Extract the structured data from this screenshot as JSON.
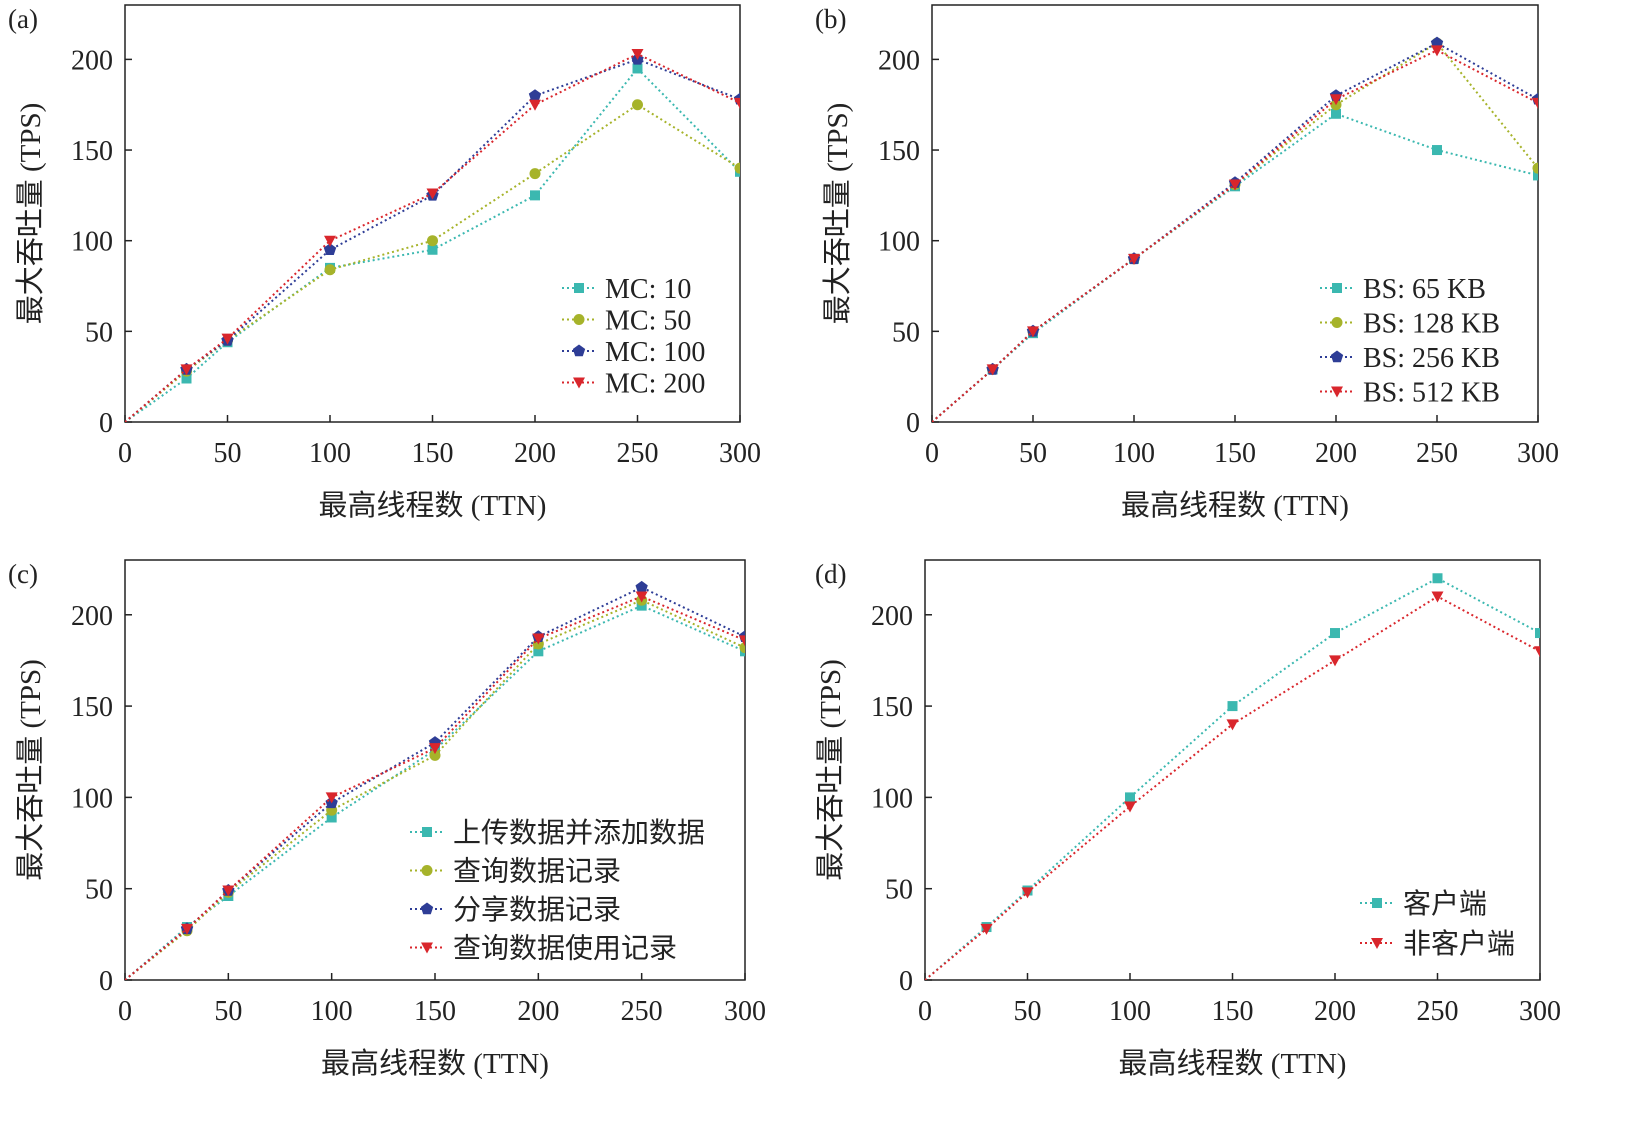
{
  "colors": {
    "teal": "#3bb8b0",
    "olive": "#a6b32a",
    "navy": "#2e3d96",
    "red": "#d9262c"
  },
  "chart_data": [
    {
      "panel": "(a)",
      "type": "line",
      "xlabel": "最高线程数 (TTN)",
      "ylabel": "最大吞吐量 (TPS)",
      "xlim": [
        0,
        300
      ],
      "ylim": [
        0,
        230
      ],
      "xticks": [
        0,
        50,
        100,
        150,
        200,
        250,
        300
      ],
      "yticks": [
        0,
        50,
        100,
        150,
        200
      ],
      "x": [
        0,
        30,
        50,
        100,
        150,
        200,
        250,
        300
      ],
      "legend_position": "right-middle",
      "series": [
        {
          "name": "MC: 10",
          "marker": "square",
          "color": "#3bb8b0",
          "values": [
            0,
            24,
            44,
            85,
            95,
            125,
            195,
            138
          ]
        },
        {
          "name": "MC: 50",
          "marker": "circle",
          "color": "#a6b32a",
          "values": [
            0,
            28,
            45,
            84,
            100,
            137,
            175,
            140
          ]
        },
        {
          "name": "MC: 100",
          "marker": "pentagon",
          "color": "#2e3d96",
          "values": [
            0,
            29,
            45,
            95,
            125,
            180,
            200,
            178
          ]
        },
        {
          "name": "MC: 200",
          "marker": "triangle-down",
          "color": "#d9262c",
          "values": [
            0,
            29,
            46,
            100,
            126,
            175,
            203,
            176
          ]
        }
      ]
    },
    {
      "panel": "(b)",
      "type": "line",
      "xlabel": "最高线程数 (TTN)",
      "ylabel": "最大吞吐量 (TPS)",
      "xlim": [
        0,
        300
      ],
      "ylim": [
        0,
        230
      ],
      "xticks": [
        0,
        50,
        100,
        150,
        200,
        250,
        300
      ],
      "yticks": [
        0,
        50,
        100,
        150,
        200
      ],
      "x": [
        0,
        30,
        50,
        100,
        150,
        200,
        250,
        300
      ],
      "legend_position": "bottom-right",
      "series": [
        {
          "name": "BS: 65 KB",
          "marker": "square",
          "color": "#3bb8b0",
          "values": [
            0,
            29,
            49,
            90,
            130,
            170,
            150,
            136
          ]
        },
        {
          "name": "BS: 128 KB",
          "marker": "circle",
          "color": "#a6b32a",
          "values": [
            0,
            29,
            50,
            90,
            131,
            175,
            209,
            140
          ]
        },
        {
          "name": "BS: 256 KB",
          "marker": "pentagon",
          "color": "#2e3d96",
          "values": [
            0,
            29,
            50,
            90,
            132,
            180,
            209,
            178
          ]
        },
        {
          "name": "BS: 512 KB",
          "marker": "triangle-down",
          "color": "#d9262c",
          "values": [
            0,
            29,
            50,
            90,
            131,
            178,
            205,
            176
          ]
        }
      ]
    },
    {
      "panel": "(c)",
      "type": "line",
      "xlabel": "最高线程数 (TTN)",
      "ylabel": "最大吞吐量 (TPS)",
      "xlim": [
        0,
        300
      ],
      "ylim": [
        0,
        230
      ],
      "xticks": [
        0,
        50,
        100,
        150,
        200,
        250,
        300
      ],
      "yticks": [
        0,
        50,
        100,
        150,
        200
      ],
      "x": [
        0,
        30,
        50,
        100,
        150,
        200,
        250,
        300
      ],
      "legend_position": "bottom-right",
      "series": [
        {
          "name": "上传数据并添加数据",
          "marker": "square",
          "color": "#3bb8b0",
          "values": [
            0,
            29,
            46,
            89,
            126,
            180,
            205,
            180
          ]
        },
        {
          "name": "查询数据记录",
          "marker": "circle",
          "color": "#a6b32a",
          "values": [
            0,
            27,
            48,
            93,
            123,
            184,
            208,
            182
          ]
        },
        {
          "name": "分享数据记录",
          "marker": "pentagon",
          "color": "#2e3d96",
          "values": [
            0,
            28,
            49,
            97,
            130,
            188,
            215,
            188
          ]
        },
        {
          "name": "查询数据使用记录",
          "marker": "triangle-down",
          "color": "#d9262c",
          "values": [
            0,
            28,
            49,
            100,
            127,
            187,
            210,
            186
          ]
        }
      ]
    },
    {
      "panel": "(d)",
      "type": "line",
      "xlabel": "最高线程数 (TTN)",
      "ylabel": "最大吞吐量 (TPS)",
      "xlim": [
        0,
        300
      ],
      "ylim": [
        0,
        230
      ],
      "xticks": [
        0,
        50,
        100,
        150,
        200,
        250,
        300
      ],
      "yticks": [
        0,
        50,
        100,
        150,
        200
      ],
      "x": [
        0,
        30,
        50,
        100,
        150,
        200,
        250,
        300
      ],
      "legend_position": "bottom-right",
      "series": [
        {
          "name": "客户端",
          "marker": "square",
          "color": "#3bb8b0",
          "values": [
            0,
            29,
            49,
            100,
            150,
            190,
            220,
            190
          ]
        },
        {
          "name": "非客户端",
          "marker": "triangle-down",
          "color": "#d9262c",
          "values": [
            0,
            28,
            48,
            95,
            140,
            175,
            210,
            180
          ]
        }
      ]
    }
  ]
}
